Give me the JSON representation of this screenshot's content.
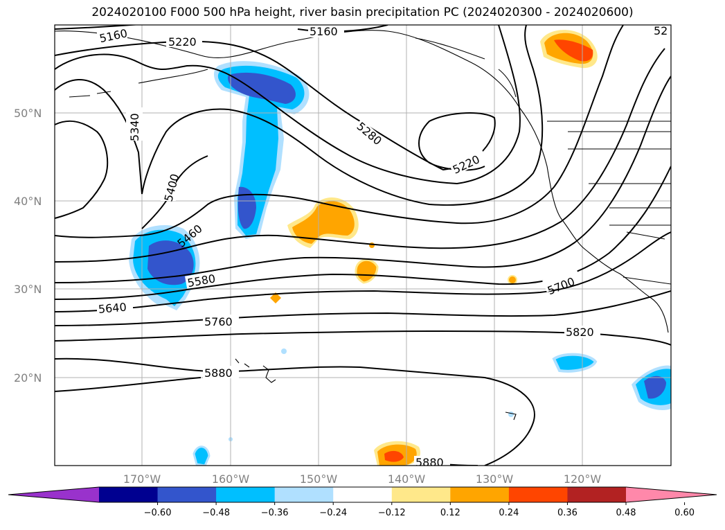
{
  "title": "2024020100 F000 500 hPa height, river basin precipitation PC (2024020300 - 2024020600)",
  "lat_labels": [
    "50°N",
    "40°N",
    "30°N",
    "20°N"
  ],
  "lon_labels": [
    "170°W",
    "160°W",
    "150°W",
    "140°W",
    "130°W",
    "120°W"
  ],
  "contour_labels": [
    "5160",
    "5220",
    "5160",
    "5280",
    "5220",
    "5340",
    "5400",
    "5460",
    "5580",
    "5640",
    "5700",
    "5760",
    "5820",
    "5880",
    "5880",
    "52"
  ],
  "colorbar": {
    "ticks": [
      "−0.60",
      "−0.48",
      "−0.36",
      "−0.24",
      "−0.12",
      "0.12",
      "0.24",
      "0.36",
      "0.48",
      "0.60"
    ],
    "colors": [
      "#9932cc",
      "#000090",
      "#3355cc",
      "#00bfff",
      "#b0e0ff",
      "#ffffff",
      "#ffe88a",
      "#ffa500",
      "#ff4500",
      "#b22222",
      "#ff88aa"
    ]
  },
  "colors": {
    "neg_light": "#b0e0ff",
    "neg_mid": "#00bfff",
    "neg_dark": "#3355cc",
    "pos_light": "#ffe88a",
    "pos_mid": "#ffa500",
    "pos_dark": "#ff4500",
    "grid": "#b0b0b0"
  }
}
